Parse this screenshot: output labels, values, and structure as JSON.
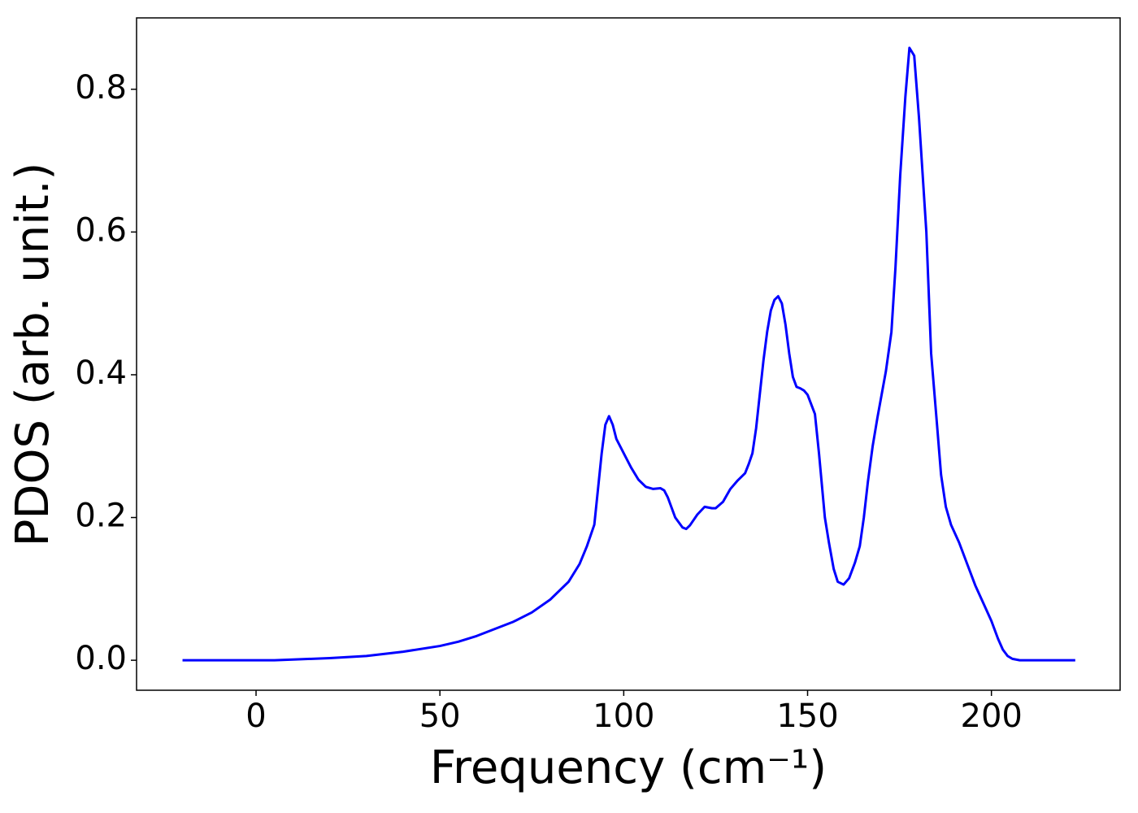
{
  "chart_data": {
    "type": "line",
    "xlabel": "Frequency (cm⁻¹)",
    "ylabel": "PDOS (arb. unit.)",
    "x": [
      -20,
      -10,
      0,
      5,
      10,
      20,
      30,
      40,
      50,
      55,
      60,
      65,
      70,
      75,
      80,
      85,
      88,
      90,
      92,
      93,
      94,
      95,
      96,
      97,
      98,
      100,
      102,
      104,
      106,
      108,
      110,
      111,
      112,
      114,
      116,
      117,
      118,
      120,
      122,
      124,
      125,
      127,
      129,
      131,
      133,
      134,
      135,
      136,
      138,
      139,
      140,
      141,
      142,
      143,
      144,
      145,
      146,
      147,
      148,
      149,
      150,
      152,
      153.1,
      154.7,
      155.8,
      157.1,
      158.2,
      159.8,
      161.3,
      162.9,
      164.2,
      165.3,
      166.4,
      167.7,
      169,
      171.3,
      172.8,
      173.9,
      175.2,
      176.6,
      177.7,
      179,
      180.3,
      182.3,
      183.6,
      185.2,
      186.3,
      187.6,
      189,
      191.2,
      193.4,
      195.6,
      197.8,
      200,
      201.8,
      203.1,
      204.4,
      205.7,
      207.7,
      215,
      222.8
    ],
    "series": [
      {
        "color": "#0000ff",
        "values": [
          0,
          0,
          0,
          0,
          0.001,
          0.003,
          0.006,
          0.012,
          0.02,
          0.026,
          0.034,
          0.044,
          0.054,
          0.067,
          0.085,
          0.11,
          0.135,
          0.16,
          0.19,
          0.24,
          0.29,
          0.33,
          0.342,
          0.33,
          0.31,
          0.29,
          0.27,
          0.253,
          0.243,
          0.24,
          0.241,
          0.238,
          0.228,
          0.2,
          0.186,
          0.184,
          0.189,
          0.204,
          0.215,
          0.213,
          0.213,
          0.222,
          0.24,
          0.252,
          0.262,
          0.275,
          0.29,
          0.325,
          0.42,
          0.46,
          0.49,
          0.505,
          0.51,
          0.5,
          0.47,
          0.43,
          0.397,
          0.383,
          0.381,
          0.378,
          0.372,
          0.345,
          0.29,
          0.2,
          0.165,
          0.128,
          0.11,
          0.106,
          0.115,
          0.137,
          0.16,
          0.2,
          0.25,
          0.3,
          0.34,
          0.405,
          0.46,
          0.55,
          0.68,
          0.79,
          0.858,
          0.847,
          0.76,
          0.6,
          0.43,
          0.33,
          0.26,
          0.215,
          0.19,
          0.165,
          0.135,
          0.105,
          0.08,
          0.055,
          0.03,
          0.015,
          0.006,
          0.002,
          0,
          0,
          0
        ]
      }
    ],
    "xlim": [
      -32.5,
      235
    ],
    "ylim": [
      -0.042,
      0.9
    ],
    "xticks": [
      0,
      50,
      100,
      150,
      200
    ],
    "yticks": [
      {
        "value": 0,
        "label": "0.0"
      },
      0.2,
      0.4,
      0.6,
      0.8
    ]
  }
}
